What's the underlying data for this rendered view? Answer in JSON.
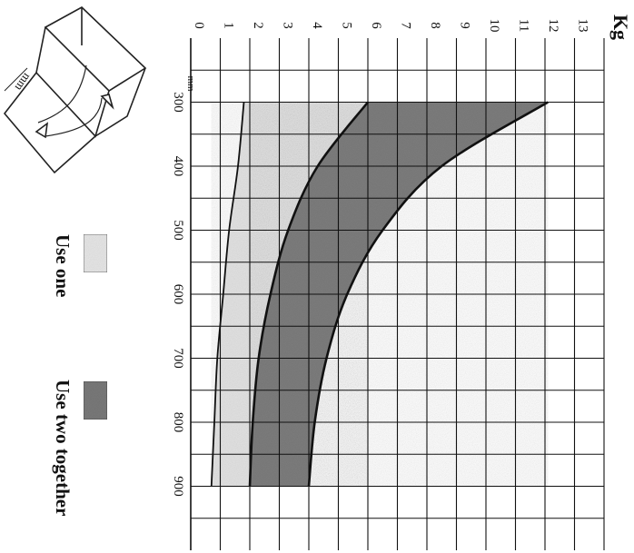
{
  "chart_data": {
    "type": "area",
    "orientation": "rotated-90-clockwise",
    "title": "",
    "ylabel": "Kg",
    "xlabel": "",
    "x_unit": "mm",
    "x_ticks": [
      300,
      400,
      500,
      600,
      700,
      800,
      900
    ],
    "xlim": [
      200,
      1000
    ],
    "y_ticks": [
      0,
      1,
      2,
      3,
      4,
      5,
      6,
      7,
      8,
      9,
      10,
      11,
      12,
      13
    ],
    "ylim": [
      0,
      14
    ],
    "grid": true,
    "legend_position": "bottom",
    "x": [
      300,
      400,
      500,
      600,
      700,
      800,
      900
    ],
    "series": [
      {
        "name": "Use one",
        "color": "#e4e4e4",
        "lower": [
          1.8,
          1.6,
          1.3,
          1.1,
          0.9,
          0.8,
          0.7
        ],
        "upper": [
          6.0,
          4.3,
          3.3,
          2.7,
          2.3,
          2.1,
          2.0
        ]
      },
      {
        "name": "Use two together",
        "color": "#7e7e7e",
        "lower": [
          6.0,
          4.3,
          3.3,
          2.7,
          2.3,
          2.1,
          2.0
        ],
        "upper": [
          12.1,
          8.5,
          6.5,
          5.3,
          4.6,
          4.2,
          4.0
        ]
      }
    ]
  },
  "diagram": {
    "dimension_label": "mm"
  }
}
